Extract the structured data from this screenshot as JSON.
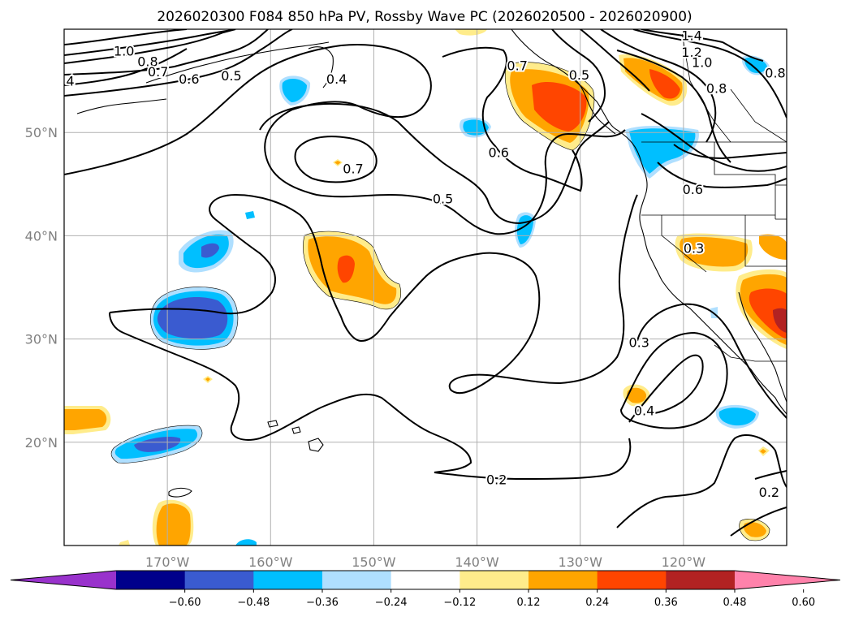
{
  "title": "2026020300 F084 850 hPa PV, Rossby Wave PC (2026020500 - 2026020900)",
  "map": {
    "lon_range": [
      -180,
      -110
    ],
    "lat_range": [
      10,
      60
    ],
    "lat_ticks": [
      {
        "value": 20,
        "label": "20°N"
      },
      {
        "value": 30,
        "label": "30°N"
      },
      {
        "value": 40,
        "label": "40°N"
      },
      {
        "value": 50,
        "label": "50°N"
      }
    ],
    "lon_ticks": [
      {
        "value": -170,
        "label": "170°W"
      },
      {
        "value": -160,
        "label": "160°W"
      },
      {
        "value": -150,
        "label": "150°W"
      },
      {
        "value": -140,
        "label": "140°W"
      },
      {
        "value": -130,
        "label": "130°W"
      },
      {
        "value": -120,
        "label": "120°W"
      }
    ],
    "gridlines": true,
    "contour_field": "850 hPa PV",
    "shaded_field": "Rossby Wave PC",
    "contour_labels": [
      {
        "text": "1.0",
        "lon": -174.2,
        "lat": 57.9
      },
      {
        "text": "0.8",
        "lon": -171.9,
        "lat": 56.9
      },
      {
        "text": "0.7",
        "lon": -170.9,
        "lat": 55.9
      },
      {
        "text": "0.6",
        "lon": -167.9,
        "lat": 55.2
      },
      {
        "text": "0.5",
        "lon": -163.8,
        "lat": 55.5
      },
      {
        "text": "4",
        "lon": -179.4,
        "lat": 55.0
      },
      {
        "text": "0.4",
        "lon": -153.6,
        "lat": 55.2
      },
      {
        "text": "0.7",
        "lon": -152.0,
        "lat": 46.5
      },
      {
        "text": "0.5",
        "lon": -143.3,
        "lat": 43.6
      },
      {
        "text": "0.6",
        "lon": -137.9,
        "lat": 48.1
      },
      {
        "text": "0.7",
        "lon": -136.1,
        "lat": 56.5
      },
      {
        "text": "0.5",
        "lon": -130.1,
        "lat": 55.6
      },
      {
        "text": "1.4",
        "lon": -119.2,
        "lat": 59.4
      },
      {
        "text": "1.2",
        "lon": -119.2,
        "lat": 57.8
      },
      {
        "text": "1.0",
        "lon": -118.2,
        "lat": 56.8
      },
      {
        "text": "0.8",
        "lon": -116.8,
        "lat": 54.3
      },
      {
        "text": "0.8",
        "lon": -111.1,
        "lat": 55.8
      },
      {
        "text": "0.6",
        "lon": -119.1,
        "lat": 44.5
      },
      {
        "text": "0.3",
        "lon": -119.0,
        "lat": 38.8
      },
      {
        "text": "0.3",
        "lon": -124.3,
        "lat": 29.7
      },
      {
        "text": "0.4",
        "lon": -123.8,
        "lat": 23.1
      },
      {
        "text": "0.2",
        "lon": -138.1,
        "lat": 16.4
      },
      {
        "text": "0.2",
        "lon": -111.7,
        "lat": 15.2
      }
    ]
  },
  "colorbar": {
    "levels": [
      -0.6,
      -0.48,
      -0.36,
      -0.24,
      -0.12,
      0.12,
      0.24,
      0.36,
      0.48,
      0.6
    ],
    "labels": [
      "−0.60",
      "−0.48",
      "−0.36",
      "−0.24",
      "−0.12",
      "0.12",
      "0.24",
      "0.36",
      "0.48",
      "0.60"
    ],
    "colors": [
      "#9932cc",
      "#00008b",
      "#3a5bd0",
      "#00bfff",
      "#afdfff",
      "#ffffff",
      "#ffec8b",
      "#ffa500",
      "#ff4500",
      "#b22222",
      "#ff82ab"
    ],
    "extend": "both"
  }
}
